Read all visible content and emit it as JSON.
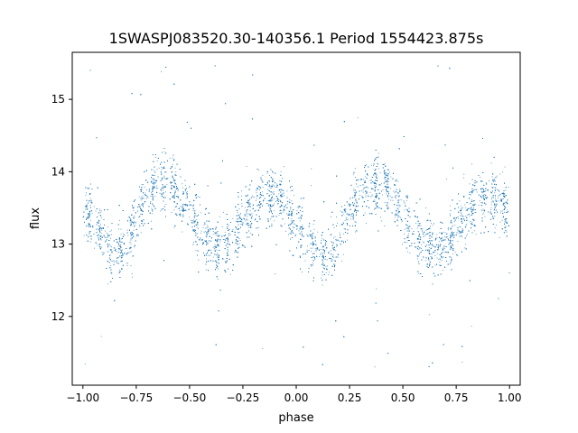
{
  "chart_data": {
    "type": "scatter",
    "title": "1SWASPJ083520.30-140356.1 Period 1554423.875s",
    "xlabel": "phase",
    "ylabel": "flux",
    "xlim": [
      -1.05,
      1.05
    ],
    "ylim": [
      11.05,
      15.65
    ],
    "x_ticks": [
      -1.0,
      -0.75,
      -0.5,
      -0.25,
      0.0,
      0.25,
      0.5,
      0.75,
      1.0
    ],
    "x_tick_labels": [
      "−1.00",
      "−0.75",
      "−0.50",
      "−0.25",
      "0.00",
      "0.25",
      "0.50",
      "0.75",
      "1.00"
    ],
    "y_ticks": [
      12,
      13,
      14,
      15
    ],
    "y_tick_labels": [
      "12",
      "13",
      "14",
      "15"
    ],
    "grid": false,
    "legend": "none",
    "marker_color": "#1f77b4",
    "series": [
      {
        "x_range": [
          -1.0,
          1.0
        ],
        "trend_phase": [
          -1.0,
          -0.95,
          -0.9,
          -0.85,
          -0.8,
          -0.75,
          -0.7,
          -0.65,
          -0.6,
          -0.55,
          -0.5,
          -0.45,
          -0.4,
          -0.35,
          -0.3,
          -0.25,
          -0.2,
          -0.15,
          -0.1,
          -0.05,
          0.0,
          0.05,
          0.1,
          0.15,
          0.2,
          0.25,
          0.3,
          0.35,
          0.4,
          0.45,
          0.5,
          0.55,
          0.6,
          0.65,
          0.7,
          0.75,
          0.8,
          0.85,
          0.9,
          0.95,
          1.0
        ],
        "trend_flux": [
          13.5,
          13.3,
          13.1,
          12.9,
          13.0,
          13.4,
          13.7,
          13.85,
          13.85,
          13.7,
          13.4,
          13.15,
          13.0,
          12.95,
          13.1,
          13.3,
          13.5,
          13.65,
          13.65,
          13.5,
          13.3,
          13.05,
          12.9,
          12.85,
          13.1,
          13.45,
          13.7,
          13.85,
          13.85,
          13.75,
          13.45,
          13.15,
          13.0,
          12.95,
          12.95,
          13.2,
          13.45,
          13.6,
          13.65,
          13.55,
          13.45
        ]
      }
    ]
  }
}
